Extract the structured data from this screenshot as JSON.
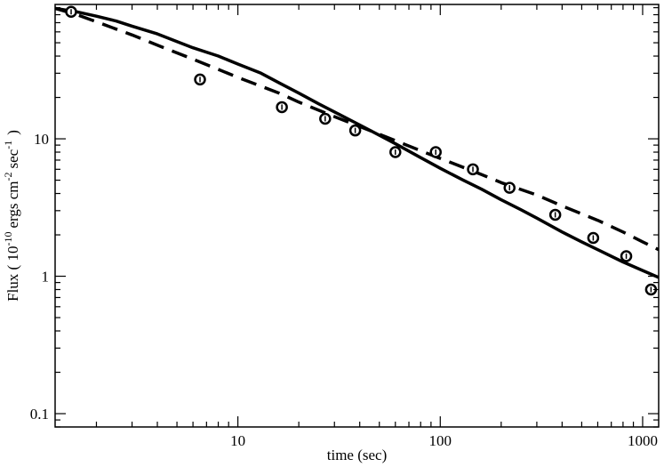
{
  "chart_data": {
    "type": "line",
    "title": "",
    "xlabel": "time (sec)",
    "ylabel": {
      "prefix": "Flux ( 10",
      "exp1": "-10",
      "mid1": "ergs cm",
      "exp2": "-2",
      "mid2": "sec",
      "exp3": "-1",
      "suffix": ")"
    },
    "xscale": "log",
    "yscale": "log",
    "xlim": [
      1.25,
      1200
    ],
    "ylim": [
      0.08,
      95
    ],
    "xticks": [
      {
        "value": 10,
        "label": "10"
      },
      {
        "value": 100,
        "label": "100"
      },
      {
        "value": 1000,
        "label": "1000"
      }
    ],
    "yticks": [
      {
        "value": 0.1,
        "label": "0.1"
      },
      {
        "value": 1,
        "label": "1"
      },
      {
        "value": 10,
        "label": "10"
      }
    ],
    "grid": false,
    "legend": "none",
    "points": [
      {
        "x": 1.5,
        "y": 84
      },
      {
        "x": 6.5,
        "y": 27
      },
      {
        "x": 16.5,
        "y": 17
      },
      {
        "x": 27,
        "y": 14
      },
      {
        "x": 38,
        "y": 11.5
      },
      {
        "x": 60,
        "y": 8
      },
      {
        "x": 95,
        "y": 8
      },
      {
        "x": 145,
        "y": 6
      },
      {
        "x": 220,
        "y": 4.4
      },
      {
        "x": 370,
        "y": 2.8
      },
      {
        "x": 570,
        "y": 1.9
      },
      {
        "x": 830,
        "y": 1.4
      },
      {
        "x": 1100,
        "y": 0.8
      }
    ],
    "series": [
      {
        "style": "solid",
        "x": [
          1.25,
          1.6,
          2,
          2.5,
          3,
          4,
          5,
          6,
          8,
          10,
          13,
          16,
          20,
          25,
          30,
          40,
          50,
          60,
          80,
          100,
          130,
          160,
          200,
          250,
          300,
          400,
          500,
          600,
          800,
          1000,
          1200
        ],
        "y": [
          89,
          84,
          78,
          72,
          66,
          58,
          51,
          46,
          40,
          35,
          30,
          25.5,
          21.5,
          18,
          15.7,
          12.6,
          10.6,
          9.2,
          7.3,
          6.1,
          5,
          4.3,
          3.6,
          3.05,
          2.65,
          2.1,
          1.78,
          1.56,
          1.27,
          1.1,
          0.98
        ]
      },
      {
        "style": "dashed",
        "x": [
          1.25,
          1.6,
          2,
          3,
          4,
          6,
          8,
          10,
          16,
          20,
          30,
          40,
          60,
          80,
          100,
          160,
          200,
          300,
          400,
          600,
          800,
          1000,
          1200
        ],
        "y": [
          89,
          80,
          71,
          57,
          48,
          38,
          32,
          28,
          21.5,
          18.5,
          14.5,
          12.3,
          9.7,
          8.2,
          7.2,
          5.5,
          4.8,
          3.9,
          3.25,
          2.55,
          2.1,
          1.78,
          1.56
        ]
      }
    ]
  }
}
